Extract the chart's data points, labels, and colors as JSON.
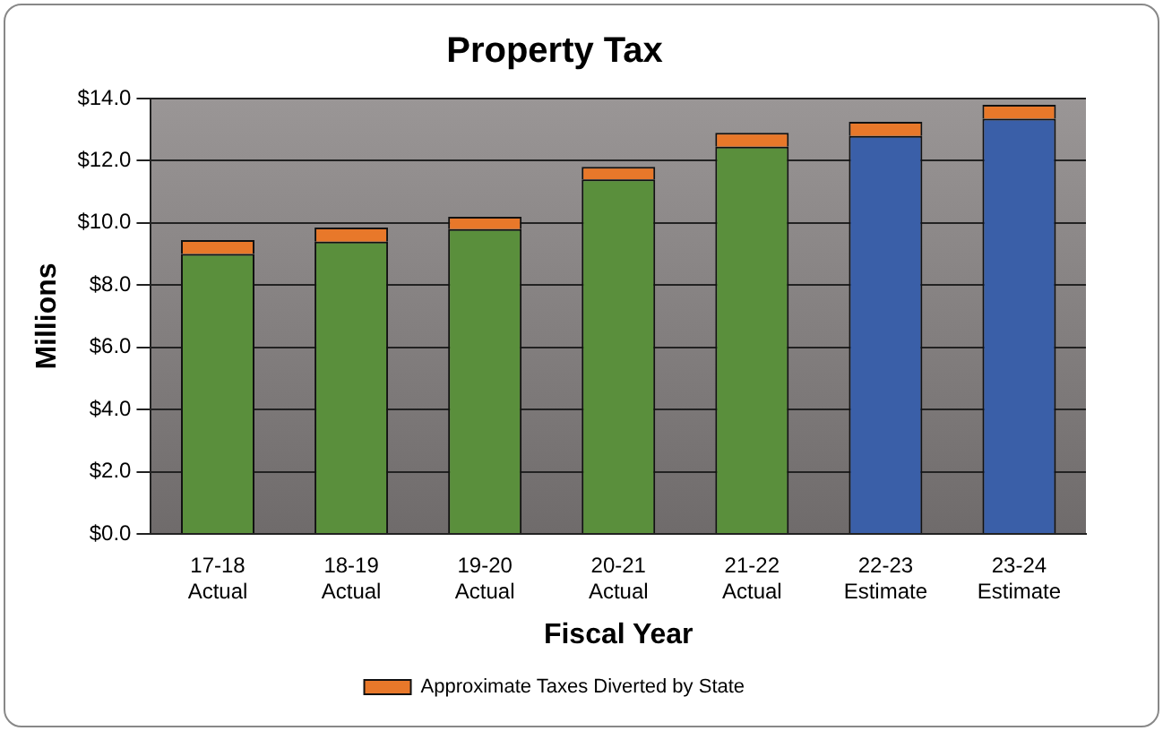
{
  "chart_data": {
    "type": "bar",
    "title": "Property Tax",
    "xlabel": "Fiscal Year",
    "ylabel": "Millions",
    "categories": [
      "17-18\nActual",
      "18-19\nActual",
      "19-20\nActual",
      "20-21\nActual",
      "21-22\nActual",
      "22-23\nEstimate",
      "23-24\nEstimate"
    ],
    "stacked": true,
    "series": [
      {
        "colors": [
          "#5a8f3c",
          "#5a8f3c",
          "#5a8f3c",
          "#5a8f3c",
          "#5a8f3c",
          "#3a5fa8",
          "#3a5fa8"
        ],
        "values": [
          9.0,
          9.4,
          9.8,
          11.4,
          12.45,
          12.8,
          13.35
        ]
      },
      {
        "name": "Approximate Taxes Diverted by State",
        "color": "#e8782a",
        "values": [
          0.45,
          0.45,
          0.4,
          0.4,
          0.45,
          0.45,
          0.45
        ]
      }
    ],
    "ylim": [
      0,
      14
    ],
    "yticks": [
      {
        "value": 0,
        "label": "$0.0"
      },
      {
        "value": 2,
        "label": "$2.0"
      },
      {
        "value": 4,
        "label": "$4.0"
      },
      {
        "value": 6,
        "label": "$6.0"
      },
      {
        "value": 8,
        "label": "$8.0"
      },
      {
        "value": 10,
        "label": "$10.0"
      },
      {
        "value": 12,
        "label": "$12.0"
      },
      {
        "value": 14,
        "label": "$14.0"
      }
    ],
    "grid": "y",
    "legend": "bottom"
  }
}
